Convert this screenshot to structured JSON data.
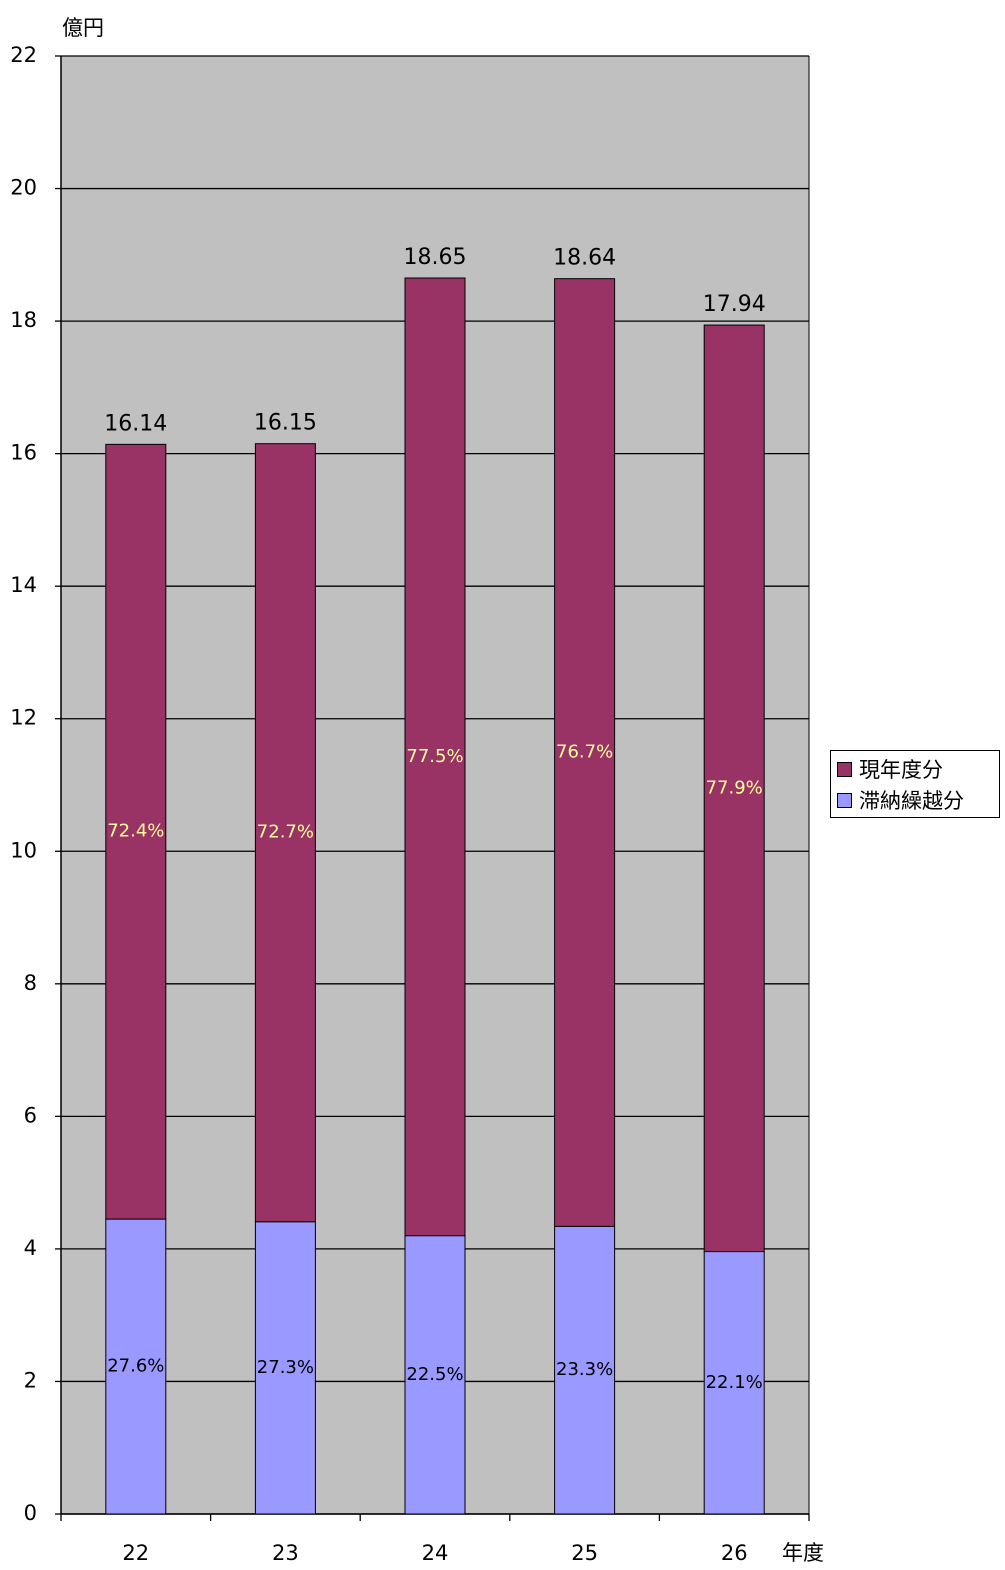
{
  "chart_data": {
    "type": "bar",
    "stacked": true,
    "ylabel": "億円",
    "xlabel": "年度",
    "ylim": [
      0,
      22
    ],
    "yticks": [
      0,
      2,
      4,
      6,
      8,
      10,
      12,
      14,
      16,
      18,
      20,
      22
    ],
    "grid": true,
    "legend_position": "right",
    "categories": [
      "22",
      "23",
      "24",
      "25",
      "26"
    ],
    "totals": [
      "16.14",
      "16.15",
      "18.65",
      "18.64",
      "17.94"
    ],
    "series": [
      {
        "name": "滞納繰越分",
        "color": "#9999ff",
        "values": [
          4.45,
          4.41,
          4.2,
          4.34,
          3.96
        ],
        "labels": [
          "27.6%",
          "27.3%",
          "22.5%",
          "23.3%",
          "22.1%"
        ],
        "label_color": "#000000"
      },
      {
        "name": "現年度分",
        "color": "#993366",
        "values": [
          11.69,
          11.74,
          14.45,
          14.3,
          13.98
        ],
        "labels": [
          "72.4%",
          "72.7%",
          "77.5%",
          "76.7%",
          "77.9%"
        ],
        "label_color": "#ffff99"
      }
    ],
    "legend_order": [
      "現年度分",
      "滞納繰越分"
    ],
    "plot_background": "#c0c0c0"
  }
}
